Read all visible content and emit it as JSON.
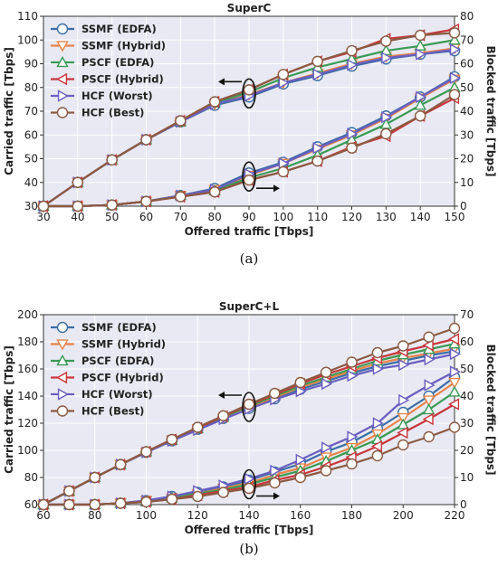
{
  "captions": [
    "(a)",
    "(b)"
  ],
  "chart_data": [
    {
      "type": "line",
      "title": "SuperC",
      "xlabel": "Offered traffic [Tbps]",
      "ylabel": "Carried traffic [Tbps]",
      "y2label": "Blocked traffic [Tbps]",
      "xlim": [
        30,
        150
      ],
      "ylim": [
        30,
        110
      ],
      "y2lim": [
        0,
        80
      ],
      "xticks": [
        30,
        40,
        50,
        60,
        70,
        80,
        90,
        100,
        110,
        120,
        130,
        140,
        150
      ],
      "yticks": [
        30,
        40,
        50,
        60,
        70,
        80,
        90,
        100,
        110
      ],
      "y2ticks": [
        0,
        10,
        20,
        30,
        40,
        50,
        60,
        70,
        80
      ],
      "grid": true,
      "legend_position": "top-left",
      "x": [
        30,
        40,
        50,
        60,
        70,
        80,
        90,
        100,
        110,
        120,
        130,
        140,
        150
      ],
      "series": [
        {
          "name": "SSMF (EDFA)",
          "color": "#3a6ea5",
          "marker": "circle",
          "carried": [
            30,
            40,
            49.5,
            58,
            65.5,
            72.5,
            76,
            81.5,
            85,
            89,
            92,
            94,
            95.5
          ],
          "blocked": [
            0,
            0,
            0.5,
            2,
            4.5,
            7.5,
            14,
            18.5,
            25,
            31,
            38,
            46,
            54.5
          ]
        },
        {
          "name": "SSMF (Hybrid)",
          "color": "#e8854a",
          "marker": "triangle-down",
          "carried": [
            30,
            40,
            49.5,
            58,
            65.5,
            73,
            77,
            82,
            86,
            90,
            93,
            94.5,
            96.5
          ],
          "blocked": [
            0,
            0,
            0.5,
            2,
            4.5,
            7,
            13,
            18,
            24,
            30,
            37,
            45.5,
            53.5
          ]
        },
        {
          "name": "PSCF (EDFA)",
          "color": "#3a9a55",
          "marker": "triangle-up",
          "carried": [
            30,
            40,
            49.5,
            58,
            65.5,
            73.5,
            78,
            84,
            88.5,
            92,
            95.5,
            97.5,
            100
          ],
          "blocked": [
            0,
            0,
            0.5,
            2,
            4.5,
            6.5,
            12,
            16,
            21.5,
            28,
            34.5,
            42.5,
            50
          ]
        },
        {
          "name": "PSCF (Hybrid)",
          "color": "#c9363c",
          "marker": "triangle-left",
          "carried": [
            30,
            40,
            49.5,
            58,
            66,
            74,
            79,
            85.5,
            91,
            95,
            100.5,
            102,
            104.5
          ],
          "blocked": [
            0,
            0,
            0.5,
            2,
            4,
            6,
            11,
            14.5,
            19,
            25,
            29.5,
            38,
            45.5
          ]
        },
        {
          "name": "HCF (Worst)",
          "color": "#6a5fc0",
          "marker": "triangle-right",
          "carried": [
            30,
            40,
            49.5,
            58,
            65.5,
            73,
            76.5,
            82,
            85.5,
            89.5,
            92.5,
            94,
            96
          ],
          "blocked": [
            0,
            0,
            0.5,
            2,
            4.5,
            7,
            13.5,
            18,
            24.5,
            30.5,
            37.5,
            46,
            54
          ]
        },
        {
          "name": "HCF (Best)",
          "color": "#8b5a42",
          "marker": "circle",
          "carried": [
            30,
            40,
            49.5,
            58,
            66,
            74,
            79,
            85.5,
            91,
            95.5,
            99.5,
            102,
            103
          ],
          "blocked": [
            0,
            0,
            0.5,
            2,
            4,
            6,
            11,
            14.5,
            19,
            24.5,
            30.5,
            38,
            47
          ]
        }
      ]
    },
    {
      "type": "line",
      "title": "SuperC+L",
      "xlabel": "Offered traffic [Tbps]",
      "ylabel": "Carried traffic [Tbps]",
      "y2label": "Blocked traffic [Tbps]",
      "xlim": [
        60,
        220
      ],
      "ylim": [
        60,
        200
      ],
      "y2lim": [
        0,
        70
      ],
      "xticks": [
        60,
        80,
        100,
        120,
        140,
        160,
        180,
        200,
        220
      ],
      "yticks": [
        60,
        80,
        100,
        120,
        140,
        160,
        180,
        200
      ],
      "y2ticks": [
        0,
        10,
        20,
        30,
        40,
        50,
        60,
        70
      ],
      "grid": true,
      "legend_position": "top-left",
      "x": [
        60,
        70,
        80,
        90,
        100,
        110,
        120,
        130,
        140,
        150,
        160,
        170,
        180,
        190,
        200,
        210,
        220
      ],
      "series": [
        {
          "name": "SSMF (EDFA)",
          "color": "#3a6ea5",
          "marker": "circle",
          "carried": [
            60,
            70,
            80,
            89.5,
            98.5,
            107,
            115.5,
            123.5,
            131,
            138,
            145,
            151,
            157,
            162,
            166,
            170,
            173
          ],
          "blocked": [
            0,
            0,
            0,
            0.5,
            1.5,
            3,
            4.5,
            6.5,
            9,
            12,
            15,
            19.5,
            23,
            28,
            34,
            40,
            47
          ]
        },
        {
          "name": "SSMF (Hybrid)",
          "color": "#e8854a",
          "marker": "triangle-down",
          "carried": [
            60,
            70,
            80,
            89.5,
            98.5,
            107.5,
            116,
            124,
            132,
            139,
            146.5,
            152.5,
            158.5,
            164,
            168,
            171.5,
            175
          ],
          "blocked": [
            0,
            0,
            0,
            0.5,
            1.5,
            2.5,
            4,
            6,
            8,
            11,
            13.5,
            17.5,
            21,
            26,
            32,
            38.5,
            45
          ]
        },
        {
          "name": "PSCF (EDFA)",
          "color": "#3a9a55",
          "marker": "triangle-up",
          "carried": [
            60,
            70,
            80,
            89.5,
            99,
            107.5,
            116,
            124.5,
            132.5,
            140,
            147.5,
            154,
            160,
            166,
            170.5,
            174.5,
            178.5
          ],
          "blocked": [
            0,
            0,
            0,
            0.5,
            1,
            2.5,
            4,
            5.5,
            7.5,
            10,
            12.5,
            16,
            20,
            24,
            29.5,
            35,
            41.5
          ]
        },
        {
          "name": "PSCF (Hybrid)",
          "color": "#c9363c",
          "marker": "triangle-left",
          "carried": [
            60,
            70,
            80,
            89.5,
            99,
            108,
            116.5,
            125,
            133.5,
            141,
            149,
            156,
            162,
            168,
            173,
            177.5,
            182
          ],
          "blocked": [
            0,
            0,
            0,
            0.5,
            1,
            2,
            3.5,
            5,
            6.5,
            9,
            11,
            14,
            17.5,
            21.5,
            26.5,
            31.5,
            37
          ]
        },
        {
          "name": "HCF (Worst)",
          "color": "#6a5fc0",
          "marker": "triangle-right",
          "carried": [
            60,
            70,
            80,
            89.5,
            98.5,
            107,
            115,
            123,
            130.5,
            137.5,
            143.5,
            149,
            155,
            160,
            163,
            167,
            171
          ],
          "blocked": [
            0,
            0,
            0,
            0.5,
            1.5,
            3,
            5,
            7,
            9.5,
            12.5,
            16.5,
            21,
            25,
            30,
            38.5,
            44,
            49
          ]
        },
        {
          "name": "HCF (Best)",
          "color": "#8b5a42",
          "marker": "circle",
          "carried": [
            60,
            70,
            80,
            89.5,
            99,
            108,
            117,
            125.5,
            134,
            142,
            150,
            157.5,
            165,
            172,
            177,
            183.5,
            190
          ],
          "blocked": [
            0,
            0,
            0,
            0.5,
            1,
            2,
            3,
            4.5,
            6,
            8,
            10,
            12.5,
            15,
            18,
            22,
            25,
            28.5
          ]
        }
      ]
    }
  ]
}
